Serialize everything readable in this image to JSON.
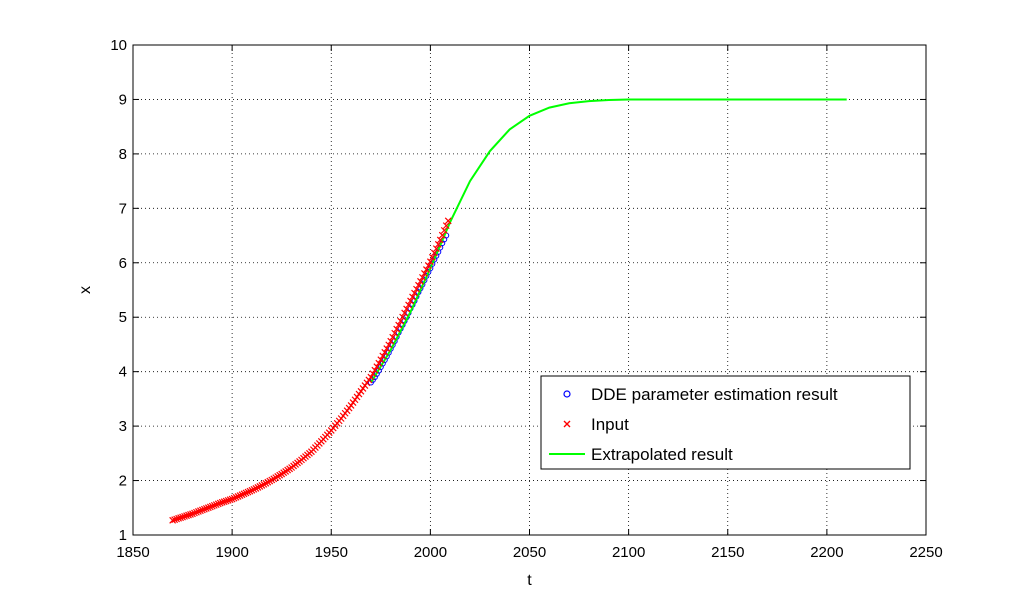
{
  "chart_data": {
    "type": "line",
    "title": "",
    "xlabel": "t",
    "ylabel": "x",
    "xlim": [
      1850,
      2250
    ],
    "ylim": [
      1,
      10
    ],
    "xticks": [
      "1850",
      "1900",
      "1950",
      "2000",
      "2050",
      "2100",
      "2150",
      "2200",
      "2250"
    ],
    "yticks": [
      "1",
      "2",
      "3",
      "4",
      "5",
      "6",
      "7",
      "8",
      "9",
      "10"
    ],
    "grid": true,
    "legend_position": "bottom-right",
    "series": [
      {
        "name": "DDE parameter estimation result",
        "marker": "circle",
        "color": "#0000ff",
        "x": [
          1970,
          1972,
          1974,
          1976,
          1978,
          1980,
          1982,
          1984,
          1986,
          1988,
          1990,
          1992,
          1994,
          1996,
          1998,
          2000,
          2002,
          2004,
          2006,
          2008
        ],
        "y": [
          3.8,
          3.9,
          4.02,
          4.15,
          4.28,
          4.42,
          4.56,
          4.72,
          4.86,
          5.0,
          5.16,
          5.3,
          5.46,
          5.6,
          5.76,
          5.9,
          6.06,
          6.2,
          6.36,
          6.5
        ]
      },
      {
        "name": "Input",
        "marker": "x",
        "color": "#ff0000",
        "x": [
          1870,
          1875,
          1880,
          1885,
          1890,
          1895,
          1900,
          1905,
          1910,
          1915,
          1920,
          1925,
          1930,
          1935,
          1940,
          1945,
          1950,
          1955,
          1960,
          1965,
          1970,
          1975,
          1980,
          1985,
          1990,
          1995,
          2000,
          2005,
          2009
        ],
        "y": [
          1.27,
          1.33,
          1.39,
          1.46,
          1.53,
          1.6,
          1.66,
          1.74,
          1.82,
          1.91,
          2.01,
          2.12,
          2.24,
          2.38,
          2.53,
          2.72,
          2.92,
          3.14,
          3.38,
          3.64,
          3.9,
          4.22,
          4.56,
          4.93,
          5.3,
          5.66,
          6.02,
          6.42,
          6.77
        ]
      },
      {
        "name": "Extrapolated result",
        "marker": "none",
        "color": "#00ff00",
        "x": [
          1970,
          1980,
          1990,
          2000,
          2010,
          2020,
          2030,
          2040,
          2050,
          2060,
          2070,
          2080,
          2090,
          2100,
          2120,
          2150,
          2180,
          2210
        ],
        "y": [
          3.8,
          4.4,
          5.1,
          5.9,
          6.75,
          7.5,
          8.05,
          8.45,
          8.7,
          8.85,
          8.93,
          8.97,
          8.99,
          9.0,
          9.0,
          9.0,
          9.0,
          9.0
        ]
      }
    ]
  }
}
